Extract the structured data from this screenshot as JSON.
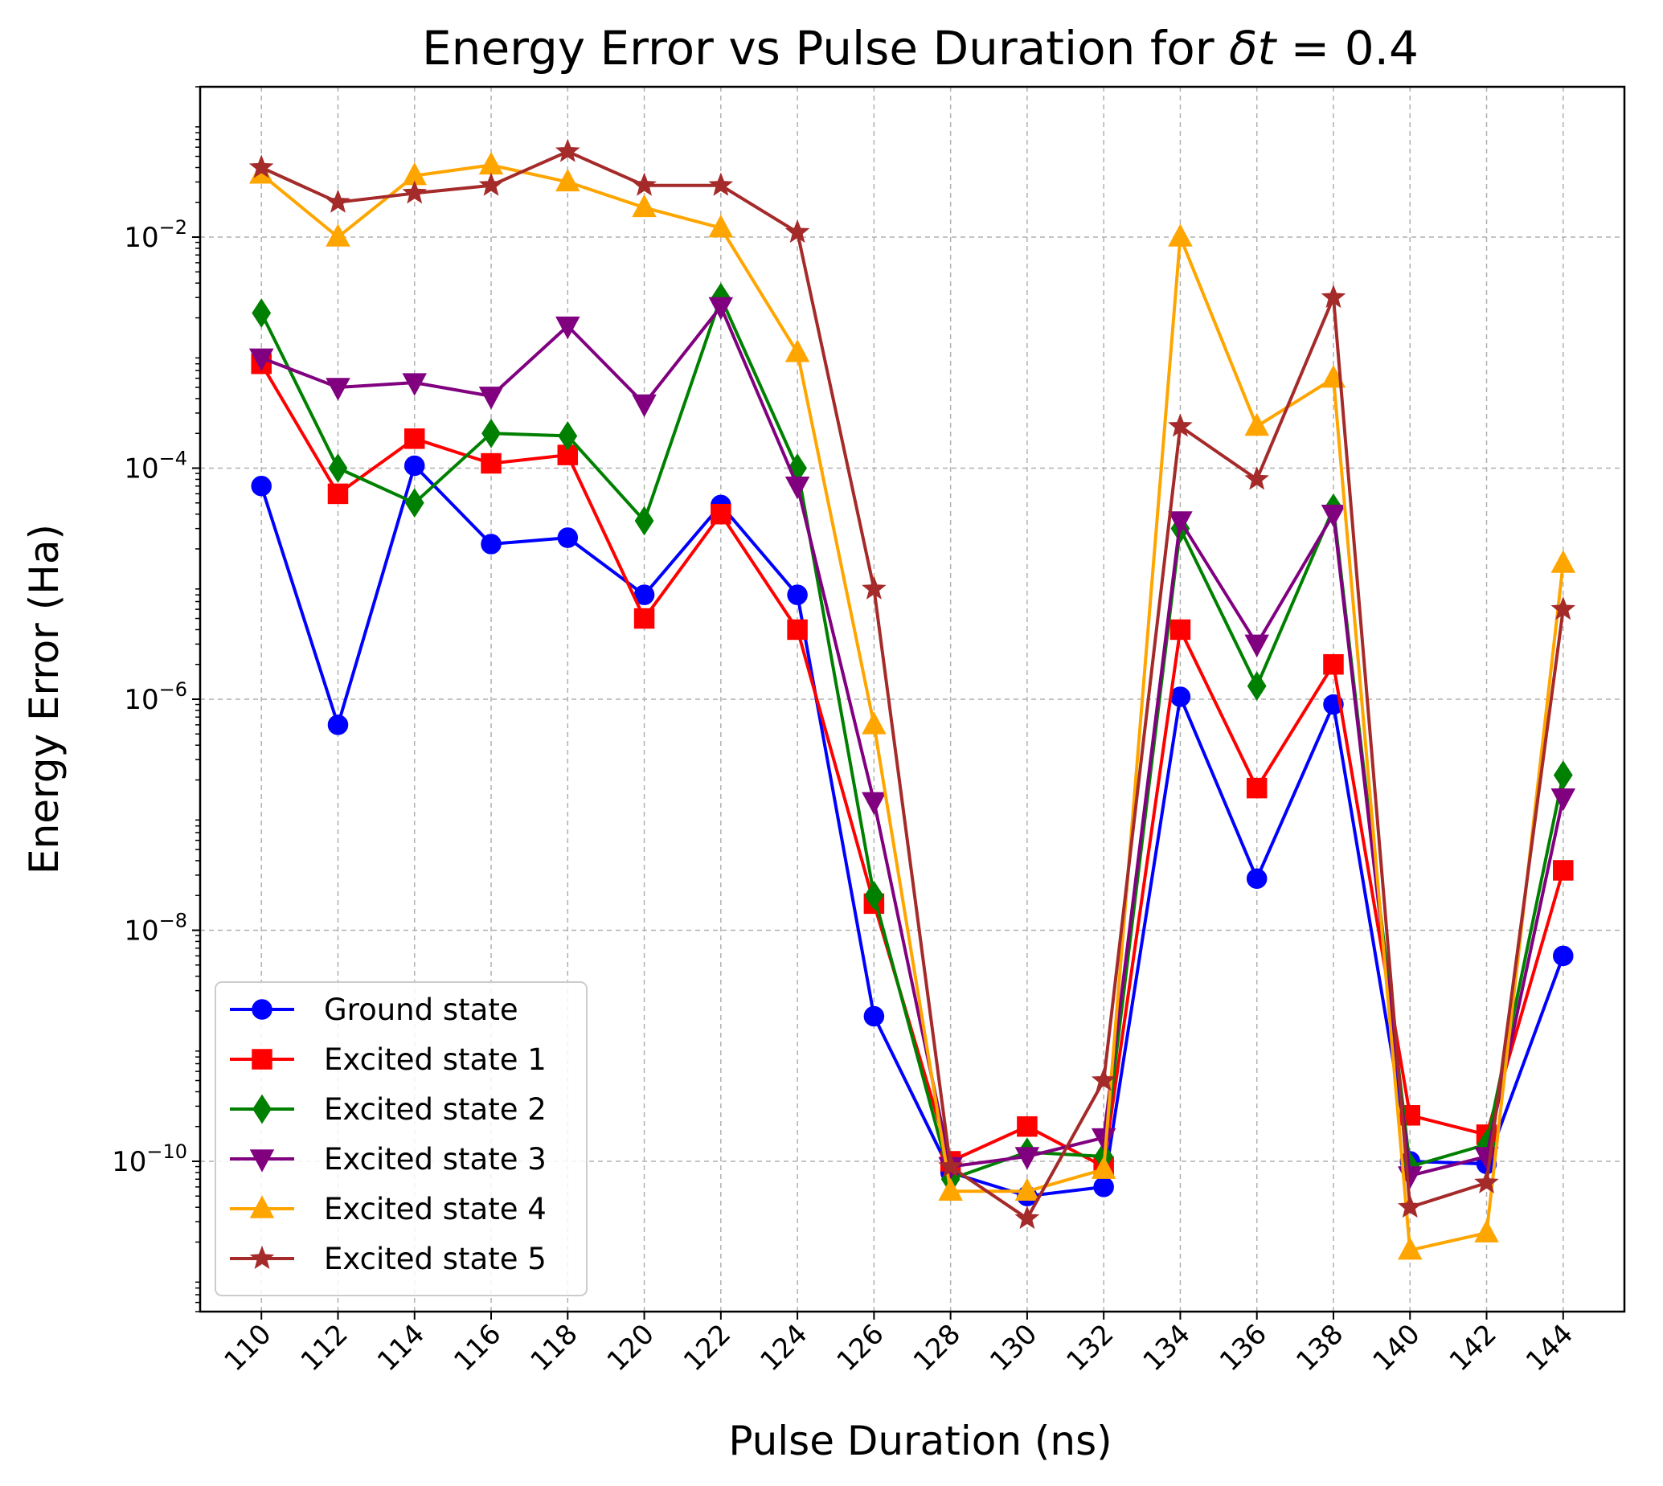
{
  "chart_data": {
    "type": "line",
    "title": "Energy Error vs Pulse Duration for δt = 0.4",
    "title_parts": [
      "Energy Error vs Pulse Duration for ",
      "δt",
      " = 0.4"
    ],
    "xlabel": "Pulse Duration (ns)",
    "ylabel": "Energy Error (Ha)",
    "yscale": "log",
    "ylim": [
      5e-12,
      0.2
    ],
    "grid": true,
    "legend_position": "lower-left",
    "x": [
      110,
      112,
      114,
      116,
      118,
      120,
      122,
      124,
      126,
      128,
      130,
      132,
      134,
      136,
      138,
      140,
      142,
      144
    ],
    "x_tick_labels": [
      "110",
      "112",
      "114",
      "116",
      "118",
      "120",
      "122",
      "124",
      "126",
      "128",
      "130",
      "132",
      "134",
      "136",
      "138",
      "140",
      "142",
      "144"
    ],
    "y_ticks": [
      {
        "value": 0.01,
        "mantissa": "10",
        "exponent": "−2"
      },
      {
        "value": 0.0001,
        "mantissa": "10",
        "exponent": "−4"
      },
      {
        "value": 1e-06,
        "mantissa": "10",
        "exponent": "−6"
      },
      {
        "value": 1e-08,
        "mantissa": "10",
        "exponent": "−8"
      },
      {
        "value": 1e-10,
        "mantissa": "10",
        "exponent": "−10"
      }
    ],
    "series": [
      {
        "name": "Ground state",
        "color": "#0000ff",
        "marker": "circle",
        "values": [
          7e-05,
          6e-07,
          0.000105,
          2.2e-05,
          2.5e-05,
          8e-06,
          4.8e-05,
          8e-06,
          1.8e-09,
          8e-11,
          5e-11,
          6e-11,
          1.05e-06,
          2.8e-08,
          9e-07,
          1e-10,
          9.5e-11,
          6e-09
        ]
      },
      {
        "name": "Excited state 1",
        "color": "#ff0000",
        "marker": "square",
        "values": [
          0.0008,
          6e-05,
          0.00018,
          0.00011,
          0.00013,
          5e-06,
          4e-05,
          4e-06,
          1.7e-08,
          1e-10,
          2e-10,
          9e-11,
          4e-06,
          1.7e-07,
          2e-06,
          2.5e-10,
          1.7e-10,
          3.3e-08
        ]
      },
      {
        "name": "Excited state 2",
        "color": "#008000",
        "marker": "diamond",
        "values": [
          0.0022,
          0.0001,
          5e-05,
          0.0002,
          0.00019,
          3.5e-05,
          0.003,
          0.0001,
          2e-08,
          7e-11,
          1.2e-10,
          1.1e-10,
          3e-05,
          1.3e-06,
          4.5e-05,
          9e-11,
          1.4e-10,
          2.2e-07
        ]
      },
      {
        "name": "Excited state 3",
        "color": "#800080",
        "marker": "triangle-down",
        "values": [
          0.0009,
          0.0005,
          0.00055,
          0.00042,
          0.0017,
          0.00036,
          0.0025,
          7e-05,
          1.3e-07,
          9e-11,
          1.1e-10,
          1.6e-10,
          3.5e-05,
          3e-06,
          4e-05,
          7.5e-11,
          1.1e-10,
          1.4e-07
        ]
      },
      {
        "name": "Excited state 4",
        "color": "#ffa500",
        "marker": "triangle-up",
        "values": [
          0.035,
          0.01,
          0.034,
          0.042,
          0.03,
          0.018,
          0.012,
          0.001,
          6e-07,
          5.5e-11,
          5.5e-11,
          8.5e-11,
          0.01,
          0.00023,
          0.0006,
          1.7e-11,
          2.4e-11,
          1.5e-05
        ]
      },
      {
        "name": "Excited state 5",
        "color": "#a52a2a",
        "marker": "star",
        "values": [
          0.04,
          0.02,
          0.024,
          0.028,
          0.055,
          0.028,
          0.028,
          0.011,
          9e-06,
          9e-11,
          3.2e-11,
          5e-10,
          0.00023,
          8e-05,
          0.003,
          4e-11,
          6.5e-11,
          6e-06
        ]
      }
    ]
  }
}
